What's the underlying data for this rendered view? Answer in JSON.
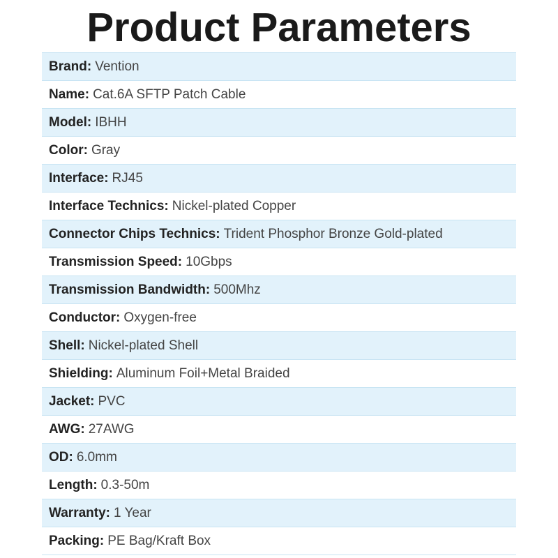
{
  "title": "Product Parameters",
  "rows": [
    {
      "label": "Brand:",
      "value": "Vention"
    },
    {
      "label": "Name:",
      "value": "Cat.6A SFTP Patch Cable"
    },
    {
      "label": "Model:",
      "value": "IBHH"
    },
    {
      "label": "Color:",
      "value": "Gray"
    },
    {
      "label": "Interface:",
      "value": "RJ45"
    },
    {
      "label": "Interface Technics:",
      "value": "Nickel-plated Copper"
    },
    {
      "label": "Connector Chips Technics:",
      "value": "Trident Phosphor Bronze Gold-plated"
    },
    {
      "label": "Transmission Speed:",
      "value": "10Gbps"
    },
    {
      "label": "Transmission Bandwidth:",
      "value": "500Mhz"
    },
    {
      "label": "Conductor:",
      "value": "Oxygen-free"
    },
    {
      "label": "Shell:",
      "value": "Nickel-plated Shell"
    },
    {
      "label": "Shielding:",
      "value": "Aluminum Foil+Metal Braided"
    },
    {
      "label": "Jacket:",
      "value": "PVC"
    },
    {
      "label": "AWG:",
      "value": "27AWG"
    },
    {
      "label": "OD:",
      "value": "6.0mm"
    },
    {
      "label": "Length:",
      "value": "0.3-50m"
    },
    {
      "label": "Warranty:",
      "value": "1 Year"
    },
    {
      "label": "Packing:",
      "value": "PE Bag/Kraft Box"
    }
  ],
  "colors": {
    "row_alt": "#e2f2fb",
    "border": "#c8e4f3"
  }
}
